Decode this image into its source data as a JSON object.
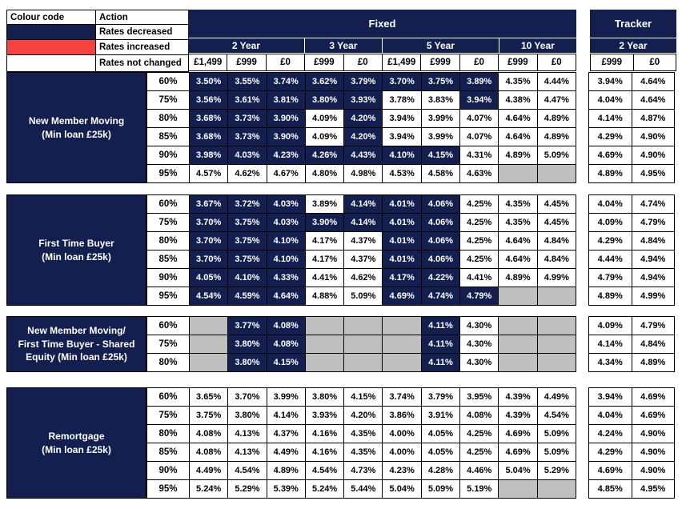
{
  "colors": {
    "navy": "#13204F",
    "red": "#F8423E",
    "grey": "#BFBFBF",
    "cell_border": "#000000"
  },
  "legend": {
    "colour_code_header": "Colour code",
    "action_header": "Action",
    "rows": [
      {
        "label": "Rates decreased",
        "state": "d"
      },
      {
        "label": "Rates increased",
        "state": "i"
      },
      {
        "label": "Rates not changed",
        "state": "n"
      }
    ]
  },
  "cell_state_key": {
    "d": "rates decreased (navy cell, white text)",
    "i": "rates increased (red cell)",
    "n": "rates not changed (white cell, black text)",
    "x": "not available (grey empty cell)"
  },
  "fixed_table": {
    "title": "Fixed",
    "terms": [
      {
        "label": "2 Year",
        "fees": [
          "£1,499",
          "£999",
          "£0"
        ]
      },
      {
        "label": "3 Year",
        "fees": [
          "£999",
          "£0"
        ]
      },
      {
        "label": "5 Year",
        "fees": [
          "£1,499",
          "£999",
          "£0"
        ]
      },
      {
        "label": "10 Year",
        "fees": [
          "£999",
          "£0"
        ]
      }
    ]
  },
  "tracker_table": {
    "title": "Tracker",
    "terms": [
      {
        "label": "2 Year",
        "fees": [
          "£999",
          "£0"
        ]
      }
    ]
  },
  "fixed_column_order": [
    "2Y £1,499",
    "2Y £999",
    "2Y £0",
    "3Y £999",
    "3Y £0",
    "5Y £1,499",
    "5Y £999",
    "5Y £0",
    "10Y £999",
    "10Y £0"
  ],
  "tracker_column_order": [
    "2Y £999",
    "2Y £0"
  ],
  "blocks": [
    {
      "label_lines": [
        "New Member Moving",
        "(Min loan £25k)"
      ],
      "rows": [
        {
          "ltv": "60%",
          "fixed": [
            "3.50%:d",
            "3.55%:d",
            "3.74%:d",
            "3.62%:d",
            "3.79%:d",
            "3.70%:d",
            "3.75%:d",
            "3.89%:d",
            "4.35%:n",
            "4.44%:n"
          ],
          "tracker": [
            "3.94%:n",
            "4.64%:n"
          ]
        },
        {
          "ltv": "75%",
          "fixed": [
            "3.56%:d",
            "3.61%:d",
            "3.81%:d",
            "3.80%:d",
            "3.93%:d",
            "3.78%:n",
            "3.83%:n",
            "3.94%:d",
            "4.38%:n",
            "4.47%:n"
          ],
          "tracker": [
            "4.04%:n",
            "4.64%:n"
          ]
        },
        {
          "ltv": "80%",
          "fixed": [
            "3.68%:d",
            "3.73%:d",
            "3.90%:d",
            "4.09%:n",
            "4.20%:d",
            "3.94%:n",
            "3.99%:n",
            "4.07%:n",
            "4.64%:n",
            "4.89%:n"
          ],
          "tracker": [
            "4.14%:n",
            "4.87%:n"
          ]
        },
        {
          "ltv": "85%",
          "fixed": [
            "3.68%:d",
            "3.73%:d",
            "3.90%:d",
            "4.09%:n",
            "4.20%:d",
            "3.94%:n",
            "3.99%:n",
            "4.07%:n",
            "4.64%:n",
            "4.89%:n"
          ],
          "tracker": [
            "4.29%:n",
            "4.90%:n"
          ]
        },
        {
          "ltv": "90%",
          "fixed": [
            "3.98%:d",
            "4.03%:d",
            "4.23%:d",
            "4.26%:d",
            "4.43%:d",
            "4.10%:d",
            "4.15%:d",
            "4.31%:n",
            "4.89%:n",
            "5.09%:n"
          ],
          "tracker": [
            "4.69%:n",
            "4.90%:n"
          ]
        },
        {
          "ltv": "95%",
          "fixed": [
            "4.57%:n",
            "4.62%:n",
            "4.67%:n",
            "4.80%:n",
            "4.98%:n",
            "4.53%:n",
            "4.58%:n",
            "4.63%:n",
            ":x",
            ":x"
          ],
          "tracker": [
            "4.89%:n",
            "4.95%:n"
          ]
        }
      ]
    },
    {
      "label_lines": [
        "First Time Buyer",
        "(Min loan £25k)"
      ],
      "rows": [
        {
          "ltv": "60%",
          "fixed": [
            "3.67%:d",
            "3.72%:d",
            "4.03%:d",
            "3.89%:n",
            "4.14%:d",
            "4.01%:d",
            "4.06%:d",
            "4.25%:n",
            "4.35%:n",
            "4.45%:n"
          ],
          "tracker": [
            "4.04%:n",
            "4.74%:n"
          ]
        },
        {
          "ltv": "75%",
          "fixed": [
            "3.70%:d",
            "3.75%:d",
            "4.03%:d",
            "3.90%:d",
            "4.14%:d",
            "4.01%:d",
            "4.06%:d",
            "4.25%:n",
            "4.35%:n",
            "4.45%:n"
          ],
          "tracker": [
            "4.09%:n",
            "4.79%:n"
          ]
        },
        {
          "ltv": "80%",
          "fixed": [
            "3.70%:d",
            "3.75%:d",
            "4.10%:d",
            "4.17%:n",
            "4.37%:n",
            "4.01%:d",
            "4.06%:d",
            "4.25%:n",
            "4.64%:n",
            "4.84%:n"
          ],
          "tracker": [
            "4.29%:n",
            "4.84%:n"
          ]
        },
        {
          "ltv": "85%",
          "fixed": [
            "3.70%:d",
            "3.75%:d",
            "4.10%:d",
            "4.17%:n",
            "4.37%:n",
            "4.01%:d",
            "4.06%:d",
            "4.25%:n",
            "4.64%:n",
            "4.84%:n"
          ],
          "tracker": [
            "4.44%:n",
            "4.94%:n"
          ]
        },
        {
          "ltv": "90%",
          "fixed": [
            "4.05%:d",
            "4.10%:d",
            "4.33%:d",
            "4.41%:n",
            "4.62%:n",
            "4.17%:d",
            "4.22%:d",
            "4.41%:n",
            "4.89%:n",
            "4.99%:n"
          ],
          "tracker": [
            "4.79%:n",
            "4.94%:n"
          ]
        },
        {
          "ltv": "95%",
          "fixed": [
            "4.54%:d",
            "4.59%:d",
            "4.64%:d",
            "4.88%:n",
            "5.09%:n",
            "4.69%:d",
            "4.74%:d",
            "4.79%:d",
            ":x",
            ":x"
          ],
          "tracker": [
            "4.89%:n",
            "4.99%:n"
          ]
        }
      ]
    },
    {
      "label_lines": [
        "New Member Moving/",
        "First Time Buyer - Shared",
        "Equity (Min loan £25k)"
      ],
      "rows": [
        {
          "ltv": "60%",
          "fixed": [
            ":x",
            "3.77%:d",
            "4.08%:d",
            ":x",
            ":x",
            ":x",
            "4.11%:d",
            "4.30%:n",
            ":x",
            ":x"
          ],
          "tracker": [
            "4.09%:n",
            "4.79%:n"
          ]
        },
        {
          "ltv": "75%",
          "fixed": [
            ":x",
            "3.80%:d",
            "4.08%:d",
            ":x",
            ":x",
            ":x",
            "4.11%:d",
            "4.30%:n",
            ":x",
            ":x"
          ],
          "tracker": [
            "4.14%:n",
            "4.84%:n"
          ]
        },
        {
          "ltv": "80%",
          "fixed": [
            ":x",
            "3.80%:d",
            "4.15%:d",
            ":x",
            ":x",
            ":x",
            "4.11%:d",
            "4.30%:n",
            ":x",
            ":x"
          ],
          "tracker": [
            "4.34%:n",
            "4.89%:n"
          ]
        }
      ]
    },
    {
      "label_lines": [
        "Remortgage",
        "(Min loan £25k)"
      ],
      "rows": [
        {
          "ltv": "60%",
          "fixed": [
            "3.65%:n",
            "3.70%:n",
            "3.99%:n",
            "3.80%:n",
            "4.15%:n",
            "3.74%:n",
            "3.79%:n",
            "3.95%:n",
            "4.39%:n",
            "4.49%:n"
          ],
          "tracker": [
            "3.94%:n",
            "4.69%:n"
          ]
        },
        {
          "ltv": "75%",
          "fixed": [
            "3.75%:n",
            "3.80%:n",
            "4.14%:n",
            "3.93%:n",
            "4.20%:n",
            "3.86%:n",
            "3.91%:n",
            "4.08%:n",
            "4.39%:n",
            "4.54%:n"
          ],
          "tracker": [
            "4.04%:n",
            "4.69%:n"
          ]
        },
        {
          "ltv": "80%",
          "fixed": [
            "4.08%:n",
            "4.13%:n",
            "4.37%:n",
            "4.16%:n",
            "4.35%:n",
            "4.00%:n",
            "4.05%:n",
            "4.25%:n",
            "4.69%:n",
            "5.09%:n"
          ],
          "tracker": [
            "4.24%:n",
            "4.90%:n"
          ]
        },
        {
          "ltv": "85%",
          "fixed": [
            "4.08%:n",
            "4.13%:n",
            "4.49%:n",
            "4.16%:n",
            "4.35%:n",
            "4.00%:n",
            "4.05%:n",
            "4.25%:n",
            "4.69%:n",
            "5.09%:n"
          ],
          "tracker": [
            "4.29%:n",
            "4.90%:n"
          ]
        },
        {
          "ltv": "90%",
          "fixed": [
            "4.49%:n",
            "4.54%:n",
            "4.89%:n",
            "4.54%:n",
            "4.73%:n",
            "4.23%:n",
            "4.28%:n",
            "4.46%:n",
            "5.04%:n",
            "5.29%:n"
          ],
          "tracker": [
            "4.69%:n",
            "4.90%:n"
          ]
        },
        {
          "ltv": "95%",
          "fixed": [
            "5.24%:n",
            "5.29%:n",
            "5.39%:n",
            "5.24%:n",
            "5.44%:n",
            "5.04%:n",
            "5.09%:n",
            "5.19%:n",
            ":x",
            ":x"
          ],
          "tracker": [
            "4.85%:n",
            "4.95%:n"
          ]
        }
      ]
    }
  ]
}
